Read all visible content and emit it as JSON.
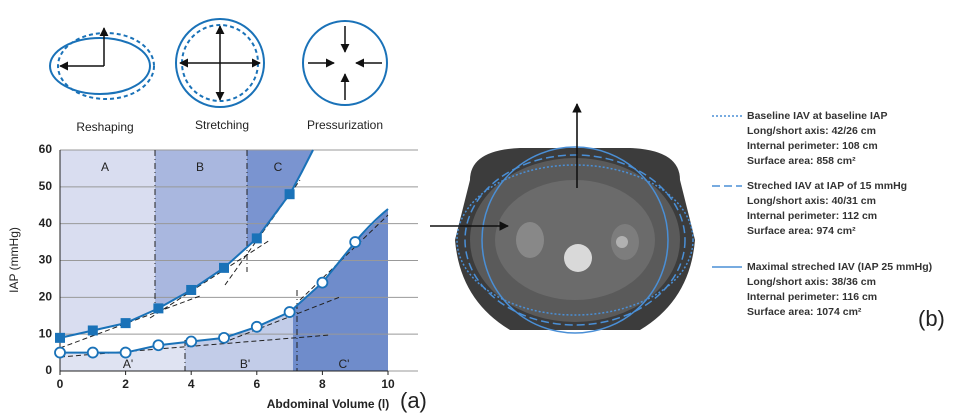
{
  "chart_data": {
    "type": "line",
    "x": [
      0,
      1,
      2,
      3,
      4,
      5,
      6,
      7,
      8,
      9
    ],
    "series": [
      {
        "color": "#1a72b8",
        "marker": "square",
        "values": [
          9,
          11,
          13,
          17,
          22,
          28,
          36,
          48,
          null,
          null
        ]
      },
      {
        "color": "#1a72b8",
        "marker": "circle",
        "values": [
          5,
          5,
          5,
          7,
          8,
          9,
          12,
          16,
          24,
          35
        ]
      }
    ],
    "xlabel": "Abdominal Volume (l)",
    "ylabel": "IAP (mmHg)",
    "xlim": [
      0,
      10
    ],
    "ylim": [
      0,
      60
    ],
    "xticks": [
      0,
      2,
      4,
      6,
      8,
      10
    ],
    "yticks": [
      0,
      10,
      20,
      30,
      40,
      50,
      60
    ],
    "grid": true,
    "annotations": [
      "A",
      "B",
      "C",
      "A'",
      "B'",
      "C'"
    ]
  },
  "diagram": {
    "labels": [
      "Reshaping",
      "Stretching",
      "Pressurization"
    ]
  },
  "panel_labels": [
    "(a)",
    "(b)"
  ],
  "legend_b": [
    {
      "name": "Baseline IAV at baseline IAP",
      "lines": [
        "Long/short axis: 42/26 cm",
        "Internal perimeter: 108 cm",
        "Surface area: 858 cm²"
      ]
    },
    {
      "name": "Streched IAV at IAP of 15 mmHg",
      "lines": [
        "Long/short axis: 40/31 cm",
        "Internal perimeter: 112 cm",
        "Surface area: 974 cm²"
      ]
    },
    {
      "name": "Maximal streched IAV (IAP 25 mmHg)",
      "lines": [
        "Long/short axis: 38/36 cm",
        "Internal perimeter: 116 cm",
        "Surface area: 1074 cm²"
      ]
    }
  ]
}
